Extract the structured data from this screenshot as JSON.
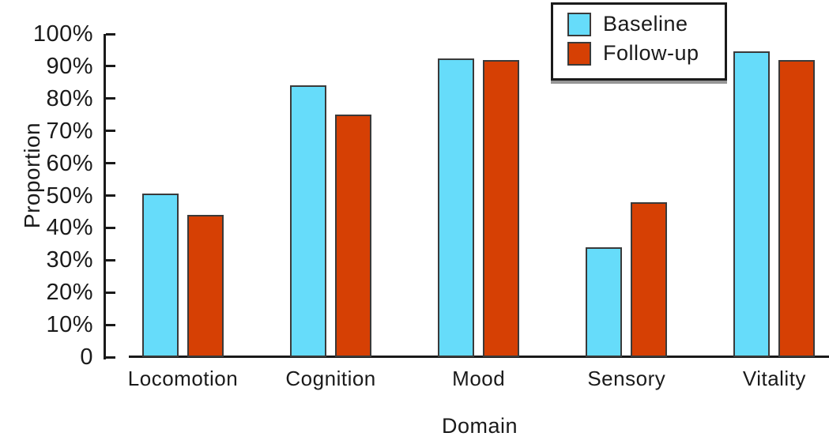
{
  "chart_data": {
    "type": "bar",
    "title": "",
    "xlabel": "Domain",
    "ylabel": "Proportion",
    "categories": [
      "Locomotion",
      "Cognition",
      "Mood",
      "Sensory",
      "Vitality"
    ],
    "series": [
      {
        "name": "Baseline",
        "color": "#66dcfa",
        "values": [
          50.5,
          84,
          92.5,
          34,
          94.5
        ]
      },
      {
        "name": "Follow-up",
        "color": "#d64004",
        "values": [
          44,
          75,
          92,
          48,
          92
        ]
      }
    ],
    "ylim": [
      0,
      100
    ],
    "y_ticks": [
      {
        "value": 100,
        "label": "100%"
      },
      {
        "value": 90,
        "label": "90%"
      },
      {
        "value": 80,
        "label": "80%"
      },
      {
        "value": 70,
        "label": "70%"
      },
      {
        "value": 60,
        "label": "60%"
      },
      {
        "value": 50,
        "label": "50%"
      },
      {
        "value": 40,
        "label": "40%"
      },
      {
        "value": 30,
        "label": "30%"
      },
      {
        "value": 20,
        "label": "20%"
      },
      {
        "value": 10,
        "label": "10%"
      },
      {
        "value": 0,
        "label": "0"
      }
    ],
    "grid": false,
    "legend_position": "top-right",
    "bar_edge_color": "#3a3a3a",
    "axis_color": "#1a1a1a"
  }
}
